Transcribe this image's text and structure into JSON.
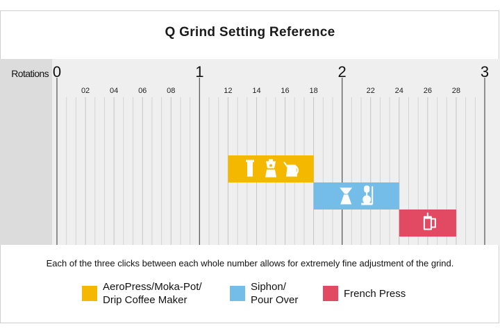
{
  "title": "Q Grind Setting Reference",
  "caption": "Each of the three clicks between each whole number allows for extremely fine adjustment of the grind.",
  "chart_data": {
    "type": "bar",
    "orientation": "horizontal-range",
    "axis_label": "Rotations",
    "xlim": [
      0,
      3
    ],
    "major_ticks": [
      "0",
      "1",
      "2",
      "3"
    ],
    "minor_ticks": [
      {
        "value": 0.2,
        "label": "02"
      },
      {
        "value": 0.4,
        "label": "04"
      },
      {
        "value": 0.6,
        "label": "06"
      },
      {
        "value": 0.8,
        "label": "08"
      },
      {
        "value": 1.2,
        "label": "12"
      },
      {
        "value": 1.4,
        "label": "14"
      },
      {
        "value": 1.6,
        "label": "16"
      },
      {
        "value": 1.8,
        "label": "18"
      },
      {
        "value": 2.2,
        "label": "22"
      },
      {
        "value": 2.4,
        "label": "24"
      },
      {
        "value": 2.6,
        "label": "26"
      },
      {
        "value": 2.8,
        "label": "28"
      }
    ],
    "grid": true,
    "series": [
      {
        "name": "AeroPress/Moka-Pot/ Drip Coffee Maker",
        "start": 1.2,
        "end": 1.8,
        "color": "#f5b800",
        "icons": [
          "aeropress-icon",
          "moka-pot-icon",
          "drip-kettle-icon"
        ]
      },
      {
        "name": "Siphon/ Pour Over",
        "start": 1.8,
        "end": 2.4,
        "color": "#74bde9",
        "icons": [
          "pour-over-icon",
          "siphon-icon"
        ]
      },
      {
        "name": "French Press",
        "start": 2.4,
        "end": 2.8,
        "color": "#e24a63",
        "icons": [
          "french-press-icon"
        ]
      }
    ]
  },
  "legend": [
    {
      "lines": [
        "AeroPress/Moka-Pot/",
        "Drip Coffee Maker"
      ],
      "color": "#f5b800"
    },
    {
      "lines": [
        "Siphon/",
        "Pour Over"
      ],
      "color": "#74bde9"
    },
    {
      "lines": [
        "French Press"
      ],
      "color": "#e24a63"
    }
  ]
}
